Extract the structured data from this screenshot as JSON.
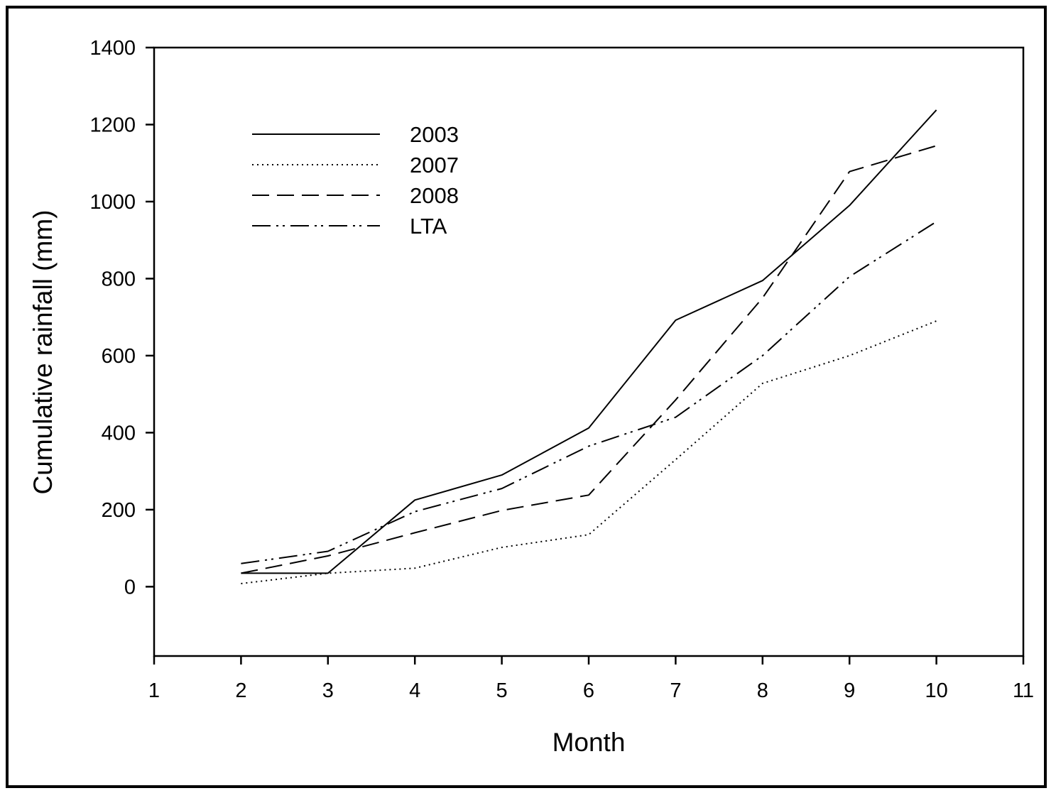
{
  "chart_data": {
    "type": "line",
    "title": "",
    "xlabel": "Month",
    "ylabel": "Cumulative rainfall (mm)",
    "xlim": [
      1,
      11
    ],
    "ylim": [
      -180,
      1400
    ],
    "xticks": [
      1,
      2,
      3,
      4,
      5,
      6,
      7,
      8,
      9,
      10,
      11
    ],
    "yticks": [
      0,
      200,
      400,
      600,
      800,
      1000,
      1200,
      1400
    ],
    "grid": false,
    "legend_position": "top-left",
    "x": [
      2,
      3,
      4,
      5,
      6,
      7,
      8,
      9,
      10
    ],
    "series": [
      {
        "name": "2003",
        "style": "solid",
        "values": [
          35,
          35,
          225,
          290,
          412,
          692,
          795,
          990,
          1238
        ]
      },
      {
        "name": "2007",
        "style": "dotted",
        "values": [
          8,
          35,
          48,
          102,
          135,
          330,
          528,
          600,
          690
        ]
      },
      {
        "name": "2008",
        "style": "dashed",
        "values": [
          35,
          80,
          140,
          198,
          238,
          485,
          750,
          1078,
          1145
        ]
      },
      {
        "name": "LTA",
        "style": "dash-dot-dot",
        "values": [
          60,
          92,
          195,
          255,
          365,
          440,
          600,
          805,
          948
        ]
      }
    ]
  }
}
